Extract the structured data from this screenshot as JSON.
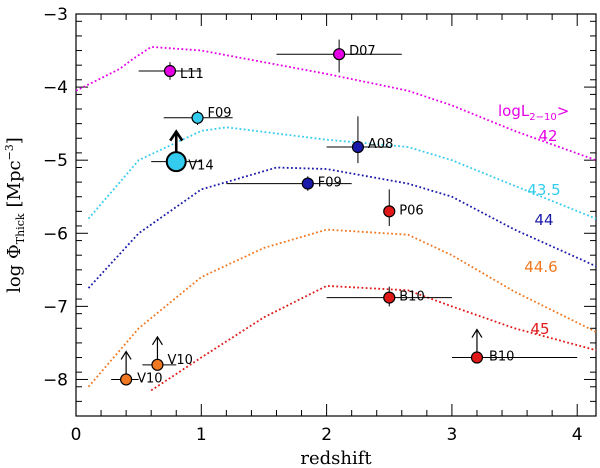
{
  "chart_data": {
    "type": "scatter",
    "xlabel": "redshift",
    "ylabel_main": "log Φ",
    "ylabel_sub": "Thick",
    "ylabel_unit": "[Mpc",
    "ylabel_exp": "−3",
    "ylabel_close": "]",
    "xlim": [
      0,
      4.15
    ],
    "ylim": [
      -8.5,
      -3
    ],
    "x_ticks": [
      0,
      1,
      2,
      3,
      4
    ],
    "x_tick_labels": [
      "0",
      "1",
      "2",
      "3",
      "4"
    ],
    "y_ticks": [
      -3,
      -4,
      -5,
      -6,
      -7,
      -8
    ],
    "y_tick_labels": [
      "−3",
      "−4",
      "−5",
      "−6",
      "−7",
      "−8"
    ],
    "legend_title_prefix": "logL",
    "legend_title_sub": "2−10",
    "legend_title_suffix": ">",
    "legend_color": "#e600e6",
    "curves": [
      {
        "name": "42",
        "color": "#e600e6",
        "x": [
          0,
          0.35,
          0.45,
          0.6,
          1.0,
          2.0,
          2.65,
          3.0,
          3.5,
          4.15
        ],
        "y": [
          -4.05,
          -3.75,
          -3.62,
          -3.45,
          -3.5,
          -3.82,
          -4.05,
          -4.25,
          -4.6,
          -5.0
        ]
      },
      {
        "name": "43.5",
        "color": "#33ccee",
        "x": [
          0.1,
          0.5,
          1.0,
          1.2,
          2.0,
          2.65,
          3.0,
          3.5,
          4.15
        ],
        "y": [
          -5.8,
          -5.0,
          -4.6,
          -4.55,
          -4.72,
          -4.82,
          -5.0,
          -5.35,
          -5.8
        ]
      },
      {
        "name": "44",
        "color": "#1a1aaa",
        "x": [
          0.1,
          0.5,
          1.0,
          1.6,
          2.0,
          2.65,
          3.0,
          3.5,
          4.15
        ],
        "y": [
          -6.75,
          -6.0,
          -5.4,
          -5.1,
          -5.12,
          -5.32,
          -5.5,
          -5.95,
          -6.45
        ]
      },
      {
        "name": "44.6",
        "color": "#f07820",
        "x": [
          0.1,
          0.5,
          1.0,
          1.5,
          2.0,
          2.65,
          3.0,
          3.5,
          4.15
        ],
        "y": [
          -8.1,
          -7.3,
          -6.6,
          -6.2,
          -5.95,
          -6.02,
          -6.3,
          -6.8,
          -7.35
        ]
      },
      {
        "name": "45",
        "color": "#e01818",
        "x": [
          0.6,
          1.0,
          1.5,
          2.0,
          2.65,
          3.0,
          3.5,
          4.15
        ],
        "y": [
          -8.15,
          -7.7,
          -7.15,
          -6.72,
          -6.78,
          -7.0,
          -7.3,
          -7.6
        ]
      }
    ],
    "points": [
      {
        "label": "D07",
        "x": 2.1,
        "y": -3.55,
        "xerr": [
          0.5,
          0.5
        ],
        "yerr": [
          0.25,
          0.2
        ],
        "color": "#e600e6",
        "upper_limit": false,
        "big": false
      },
      {
        "label": "L11",
        "x": 0.75,
        "y": -3.78,
        "xerr": [
          0.25,
          0.25
        ],
        "yerr": [
          0.12,
          0.12
        ],
        "color": "#e600e6",
        "upper_limit": false,
        "big": false
      },
      {
        "label": "F09",
        "x": 0.97,
        "y": -4.42,
        "xerr": [
          0.27,
          0.28
        ],
        "yerr": [
          0.1,
          0.1
        ],
        "color": "#33ccee",
        "upper_limit": false,
        "big": false
      },
      {
        "label": "V14",
        "x": 0.8,
        "y": -5.02,
        "xerr": [
          0.2,
          0.2
        ],
        "yerr": [
          0,
          0
        ],
        "color": "#33ccee",
        "upper_limit": true,
        "big": true
      },
      {
        "label": "A08",
        "x": 2.25,
        "y": -4.82,
        "xerr": [
          0.25,
          0.25
        ],
        "yerr": [
          0.22,
          0.42
        ],
        "color": "#1a1aaa",
        "upper_limit": false,
        "big": false
      },
      {
        "label": "F09",
        "x": 1.85,
        "y": -5.32,
        "xerr": [
          0.65,
          0.35
        ],
        "yerr": [
          0.1,
          0.1
        ],
        "color": "#1a1aaa",
        "upper_limit": false,
        "big": false
      },
      {
        "label": "P06",
        "x": 2.5,
        "y": -5.7,
        "xerr": [
          0,
          0
        ],
        "yerr": [
          0.2,
          0.3
        ],
        "color": "#e01818",
        "upper_limit": false,
        "big": false
      },
      {
        "label": "B10",
        "x": 2.5,
        "y": -6.88,
        "xerr": [
          0.5,
          0.5
        ],
        "yerr": [
          0.12,
          0.15
        ],
        "color": "#e01818",
        "upper_limit": false,
        "big": false
      },
      {
        "label": "B10",
        "x": 3.2,
        "y": -7.7,
        "xerr": [
          0.2,
          0.8
        ],
        "yerr": [
          0,
          0
        ],
        "color": "#e01818",
        "upper_limit": true,
        "big": false
      },
      {
        "label": "V10",
        "x": 0.4,
        "y": -8.0,
        "xerr": [
          0.12,
          0.1
        ],
        "yerr": [
          0,
          0
        ],
        "color": "#f07820",
        "upper_limit": true,
        "big": false
      },
      {
        "label": "V10",
        "x": 0.65,
        "y": -7.8,
        "xerr": [
          0.12,
          0.15
        ],
        "yerr": [
          0,
          0
        ],
        "color": "#f07820",
        "upper_limit": true,
        "big": false
      }
    ]
  }
}
